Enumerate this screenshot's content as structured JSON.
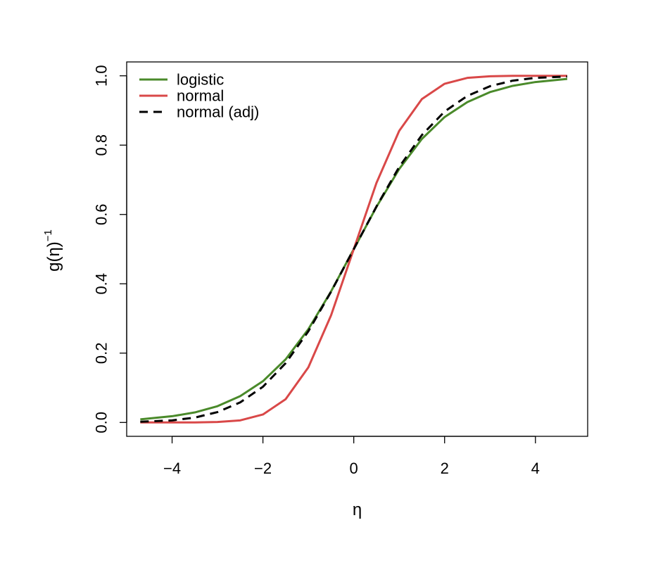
{
  "chart_data": {
    "type": "line",
    "title": "",
    "xlabel": "η",
    "ylabel": "g(η)",
    "ylabel_superscript": "−1",
    "xlim": [
      -5.0,
      5.15
    ],
    "ylim": [
      -0.04,
      1.04
    ],
    "x_ticks": [
      -4,
      -2,
      0,
      2,
      4
    ],
    "x_tick_labels": [
      "−4",
      "−2",
      "0",
      "2",
      "4"
    ],
    "y_ticks": [
      0.0,
      0.2,
      0.4,
      0.6,
      0.8,
      1.0
    ],
    "y_tick_labels": [
      "0.0",
      "0.2",
      "0.4",
      "0.6",
      "0.8",
      "1.0"
    ],
    "grid": false,
    "legend_position": "top-left",
    "legend_boxed": false,
    "series": [
      {
        "name": "logistic",
        "color": "#4a8a2a",
        "dash": "solid",
        "x": [
          -4.7,
          -4.0,
          -3.5,
          -3.0,
          -2.5,
          -2.0,
          -1.5,
          -1.0,
          -0.5,
          0.0,
          0.5,
          1.0,
          1.5,
          2.0,
          2.5,
          3.0,
          3.5,
          4.0,
          4.7
        ],
        "y": [
          0.009,
          0.018,
          0.029,
          0.047,
          0.076,
          0.119,
          0.182,
          0.269,
          0.378,
          0.5,
          0.622,
          0.731,
          0.818,
          0.881,
          0.924,
          0.953,
          0.971,
          0.982,
          0.991
        ]
      },
      {
        "name": "normal",
        "color": "#d94848",
        "dash": "solid",
        "x": [
          -4.7,
          -4.0,
          -3.5,
          -3.0,
          -2.5,
          -2.0,
          -1.5,
          -1.0,
          -0.5,
          0.0,
          0.5,
          1.0,
          1.5,
          2.0,
          2.5,
          3.0,
          3.5,
          4.0,
          4.7
        ],
        "y": [
          0.0,
          0.0,
          0.0002,
          0.0013,
          0.006,
          0.023,
          0.067,
          0.159,
          0.309,
          0.5,
          0.691,
          0.841,
          0.933,
          0.977,
          0.994,
          0.9987,
          0.9998,
          1.0,
          1.0
        ]
      },
      {
        "name": "normal (adj)",
        "color": "#000000",
        "dash": "dashed",
        "x": [
          -4.7,
          -4.0,
          -3.5,
          -3.0,
          -2.5,
          -2.0,
          -1.5,
          -1.0,
          -0.5,
          0.0,
          0.5,
          1.0,
          1.5,
          2.0,
          2.5,
          3.0,
          3.5,
          4.0,
          4.7
        ],
        "y": [
          0.002,
          0.006,
          0.014,
          0.03,
          0.058,
          0.103,
          0.171,
          0.263,
          0.377,
          0.5,
          0.623,
          0.737,
          0.829,
          0.897,
          0.942,
          0.97,
          0.986,
          0.994,
          0.998
        ]
      }
    ]
  }
}
